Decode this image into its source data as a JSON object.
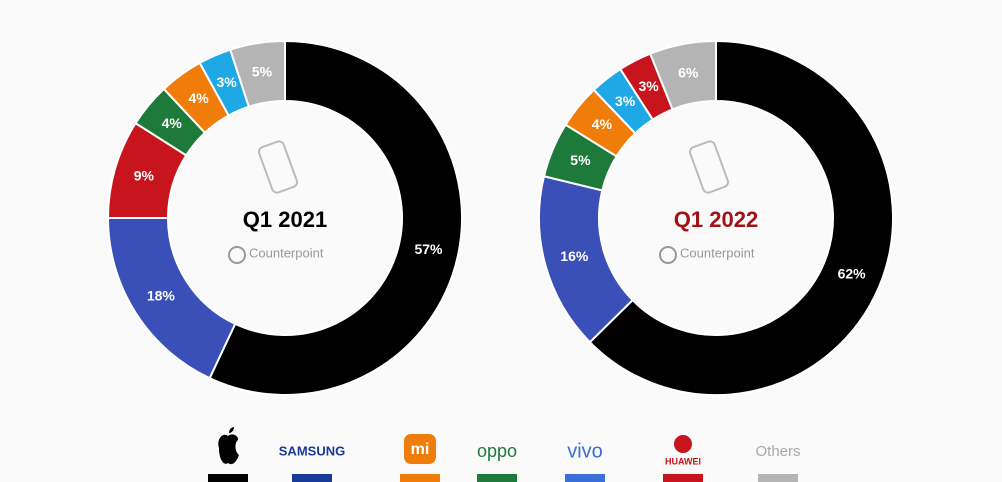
{
  "chart_data": [
    {
      "type": "pie",
      "title": "Q1 2021",
      "title_color": "#000000",
      "watermark": "Counterpoint",
      "values": [
        57,
        18,
        9,
        4,
        4,
        3,
        5
      ],
      "value_labels": [
        "57%",
        "18%",
        "9%",
        "4%",
        "4%",
        "3%",
        "5%"
      ],
      "colors": [
        "#000000",
        "#3a4fb8",
        "#c8141c",
        "#1e7a3a",
        "#f07d0a",
        "#1ea8e6",
        "#b4b4b4"
      ]
    },
    {
      "type": "pie",
      "title": "Q1 2022",
      "title_color": "#a01218",
      "watermark": "Counterpoint",
      "values": [
        62,
        16,
        5,
        4,
        3,
        3,
        6
      ],
      "value_labels": [
        "62%",
        "16%",
        "5%",
        "4%",
        "3%",
        "3%",
        "6%"
      ],
      "colors": [
        "#000000",
        "#3a4fb8",
        "#1e7a3a",
        "#f07d0a",
        "#1ea8e6",
        "#c8141c",
        "#b4b4b4"
      ]
    }
  ],
  "legend": {
    "labels": [
      null,
      "SAMSUNG",
      "mi",
      "oppo",
      "vivo",
      "HUAWEI",
      "Others"
    ],
    "colors": [
      "#000000",
      "#1a3a9a",
      "#f07d0a",
      "#1e7a3a",
      "#3a6fd8",
      "#c8141c",
      "#b4b4b4"
    ]
  }
}
